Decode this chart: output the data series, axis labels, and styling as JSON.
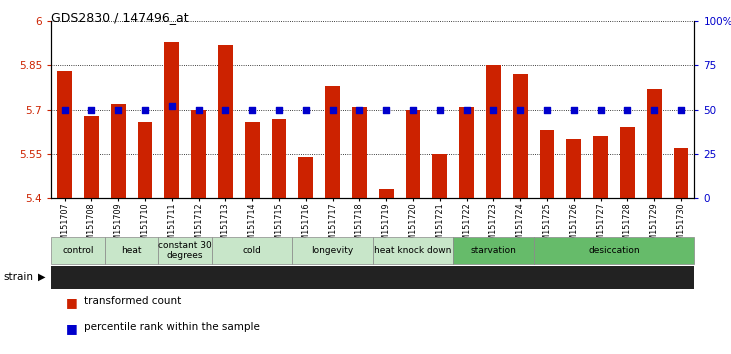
{
  "title": "GDS2830 / 147496_at",
  "samples": [
    "GSM151707",
    "GSM151708",
    "GSM151709",
    "GSM151710",
    "GSM151711",
    "GSM151712",
    "GSM151713",
    "GSM151714",
    "GSM151715",
    "GSM151716",
    "GSM151717",
    "GSM151718",
    "GSM151719",
    "GSM151720",
    "GSM151721",
    "GSM151722",
    "GSM151723",
    "GSM151724",
    "GSM151725",
    "GSM151726",
    "GSM151727",
    "GSM151728",
    "GSM151729",
    "GSM151730"
  ],
  "bar_values": [
    5.83,
    5.68,
    5.72,
    5.66,
    5.93,
    5.7,
    5.92,
    5.66,
    5.67,
    5.54,
    5.78,
    5.71,
    5.43,
    5.7,
    5.55,
    5.71,
    5.85,
    5.82,
    5.63,
    5.6,
    5.61,
    5.64,
    5.77,
    5.57
  ],
  "percentile_values": [
    50,
    50,
    50,
    50,
    52,
    50,
    50,
    50,
    50,
    50,
    50,
    50,
    50,
    50,
    50,
    50,
    50,
    50,
    50,
    50,
    50,
    50,
    50,
    50
  ],
  "bar_color": "#cc2200",
  "dot_color": "#0000cc",
  "ylim_left": [
    5.4,
    6.0
  ],
  "ylim_right": [
    0,
    100
  ],
  "yticks_left": [
    5.4,
    5.55,
    5.7,
    5.85,
    6.0
  ],
  "yticks_right": [
    0,
    25,
    50,
    75,
    100
  ],
  "ytick_labels_left": [
    "5.4",
    "5.55",
    "5.7",
    "5.85",
    "6"
  ],
  "ytick_labels_right": [
    "0",
    "25",
    "50",
    "75",
    "100%"
  ],
  "groups": [
    {
      "label": "control",
      "start": 0,
      "end": 2,
      "color": "#c8e6c9"
    },
    {
      "label": "heat",
      "start": 2,
      "end": 4,
      "color": "#c8e6c9"
    },
    {
      "label": "constant 30\ndegrees",
      "start": 4,
      "end": 6,
      "color": "#c8e6c9"
    },
    {
      "label": "cold",
      "start": 6,
      "end": 9,
      "color": "#c8e6c9"
    },
    {
      "label": "longevity",
      "start": 9,
      "end": 12,
      "color": "#c8e6c9"
    },
    {
      "label": "heat knock down",
      "start": 12,
      "end": 15,
      "color": "#c8e6c9"
    },
    {
      "label": "starvation",
      "start": 15,
      "end": 18,
      "color": "#66bb6a"
    },
    {
      "label": "desiccation",
      "start": 18,
      "end": 24,
      "color": "#66bb6a"
    }
  ],
  "strain_label": "strain",
  "legend_bar_label": "transformed count",
  "legend_dot_label": "percentile rank within the sample",
  "bg_color": "#ffffff",
  "bar_bottom": 5.4
}
